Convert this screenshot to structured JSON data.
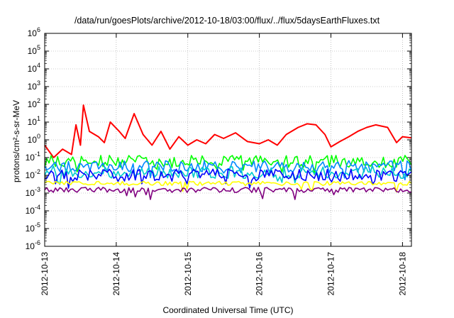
{
  "chart_data": {
    "type": "line",
    "title": "/data/run/goesPlots/archive/2012-10-18/03:00/flux/../flux/5daysEarthFluxes.txt",
    "xlabel": "Coordinated Universal Time (UTC)",
    "ylabel": "protons/cm²-s-sr-MeV",
    "y_scale": "log",
    "ylim": [
      1e-06,
      1000000.0
    ],
    "xlim": [
      "2012-10-13T00:00",
      "2012-10-18T03:00"
    ],
    "grid": true,
    "x_tick_labels": [
      "2012-10-13",
      "2012-10-14",
      "2012-10-15",
      "2012-10-16",
      "2012-10-17",
      "2012-10-18"
    ],
    "y_tick_labels": [
      {
        "base": "10",
        "exp": "6"
      },
      {
        "base": "10",
        "exp": "5"
      },
      {
        "base": "10",
        "exp": "4"
      },
      {
        "base": "10",
        "exp": "3"
      },
      {
        "base": "10",
        "exp": "2"
      },
      {
        "base": "10",
        "exp": "1"
      },
      {
        "base": "10",
        "exp": "0"
      },
      {
        "base": "10",
        "exp": "-1"
      },
      {
        "base": "10",
        "exp": "-2"
      },
      {
        "base": "10",
        "exp": "-3"
      },
      {
        "base": "10",
        "exp": "-4"
      },
      {
        "base": "10",
        "exp": "-5"
      },
      {
        "base": "10",
        "exp": "-6"
      }
    ],
    "series": [
      {
        "color": "#ff0000",
        "x": [
          "2012-10-13T00:00",
          "2012-10-13T03:00",
          "2012-10-13T06:00",
          "2012-10-13T09:00",
          "2012-10-13T10:30",
          "2012-10-13T12:00",
          "2012-10-13T13:00",
          "2012-10-13T15:00",
          "2012-10-13T18:00",
          "2012-10-13T20:00",
          "2012-10-13T22:00",
          "2012-10-14T01:00",
          "2012-10-14T03:00",
          "2012-10-14T06:00",
          "2012-10-14T09:00",
          "2012-10-14T12:00",
          "2012-10-14T15:00",
          "2012-10-14T18:00",
          "2012-10-14T21:00",
          "2012-10-15T00:00",
          "2012-10-15T03:00",
          "2012-10-15T06:00",
          "2012-10-15T09:00",
          "2012-10-15T12:00",
          "2012-10-15T16:00",
          "2012-10-15T20:00",
          "2012-10-16T00:00",
          "2012-10-16T03:00",
          "2012-10-16T06:00",
          "2012-10-16T09:00",
          "2012-10-16T13:00",
          "2012-10-16T16:00",
          "2012-10-16T19:00",
          "2012-10-16T22:00",
          "2012-10-17T00:00",
          "2012-10-17T03:00",
          "2012-10-17T06:00",
          "2012-10-17T09:00",
          "2012-10-17T12:00",
          "2012-10-17T15:00",
          "2012-10-17T19:00",
          "2012-10-17T22:00",
          "2012-10-18T00:00",
          "2012-10-18T03:00"
        ],
        "y": [
          0.5,
          0.1,
          0.3,
          0.15,
          7,
          0.5,
          90,
          3,
          1.5,
          0.7,
          10,
          3,
          1.2,
          30,
          2,
          0.5,
          3,
          0.3,
          1.5,
          0.5,
          1,
          0.6,
          2,
          1.2,
          2.5,
          0.8,
          0.6,
          1,
          0.5,
          2,
          5,
          8,
          7,
          2,
          0.4,
          0.8,
          1.5,
          3,
          5,
          7,
          5,
          0.7,
          1.5,
          1.3
        ]
      },
      {
        "color": "#00ff00",
        "base": 0.06
      },
      {
        "color": "#0088ff",
        "base": 0.03
      },
      {
        "color": "#00cccc",
        "base": 0.015
      },
      {
        "color": "#0000ff",
        "base": 0.01
      },
      {
        "color": "#ffff00",
        "base": 0.0035
      },
      {
        "color": "#800080",
        "base": 0.0015
      }
    ]
  }
}
